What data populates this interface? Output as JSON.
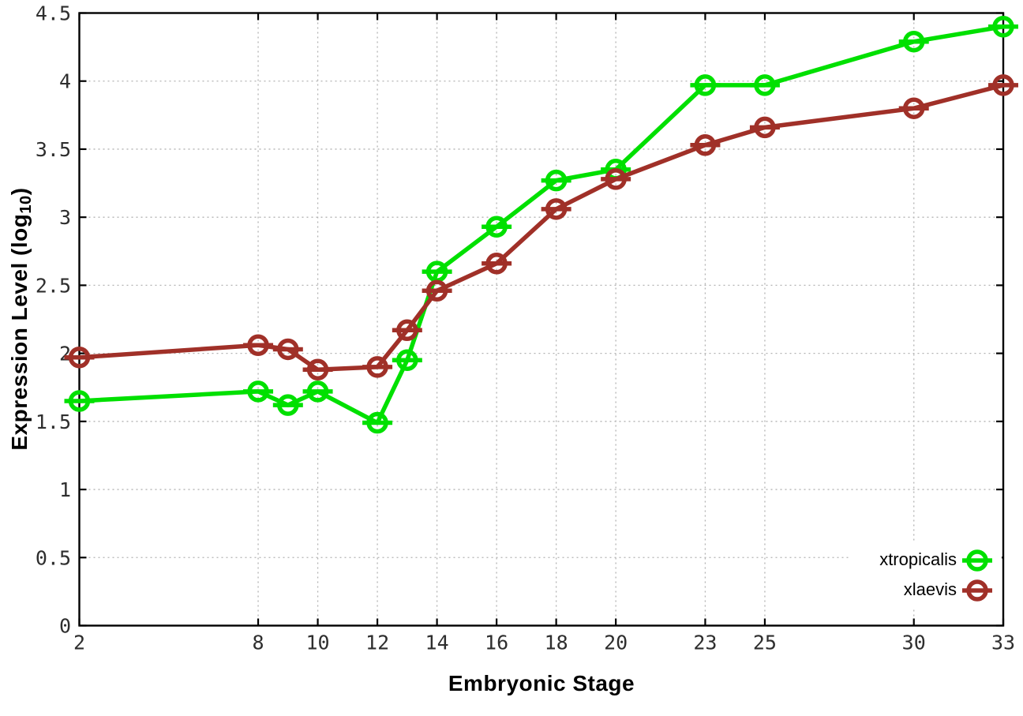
{
  "chart_data": {
    "type": "line",
    "title": "",
    "xlabel": "Embryonic Stage",
    "ylabel": "Expression Level (log10)",
    "ylabel_parts": {
      "main": "Expression Level (log",
      "sub": "10",
      "close": ")"
    },
    "x": [
      2,
      8,
      9,
      10,
      12,
      13,
      14,
      16,
      18,
      20,
      23,
      25,
      30,
      33
    ],
    "x_tick_values": [
      2,
      8,
      10,
      12,
      14,
      16,
      18,
      20,
      23,
      25,
      30,
      33
    ],
    "x_tick_labels": [
      "2",
      "8",
      "10",
      "12",
      "14",
      "16",
      "18",
      "20",
      "23",
      "25",
      "30",
      "33"
    ],
    "y_tick_values": [
      0,
      0.5,
      1,
      1.5,
      2,
      2.5,
      3,
      3.5,
      4,
      4.5
    ],
    "y_tick_labels": [
      "0",
      "0.5",
      "1",
      "1.5",
      "2",
      "2.5",
      "3",
      "3.5",
      "4",
      "4.5"
    ],
    "xlim": [
      2,
      33
    ],
    "ylim": [
      0,
      4.5
    ],
    "grid": true,
    "legend_position": "bottom-right",
    "marker": "open-circle-with-horizontal-bar",
    "series": [
      {
        "name": "xtropicalis",
        "color": "#00e000",
        "values": [
          1.65,
          1.72,
          1.62,
          1.72,
          1.49,
          1.95,
          2.6,
          2.93,
          3.27,
          3.35,
          3.97,
          3.97,
          4.29,
          4.4
        ]
      },
      {
        "name": "xlaevis",
        "color": "#a03028",
        "values": [
          1.97,
          2.06,
          2.03,
          1.88,
          1.9,
          2.17,
          2.46,
          2.66,
          3.06,
          3.28,
          3.53,
          3.66,
          3.8,
          3.97
        ]
      }
    ]
  },
  "colors": {
    "background": "#ffffff",
    "axis": "#000000",
    "grid": "#b3b3b3",
    "tick_text": "#2e2e2e",
    "title_text": "#000000"
  }
}
